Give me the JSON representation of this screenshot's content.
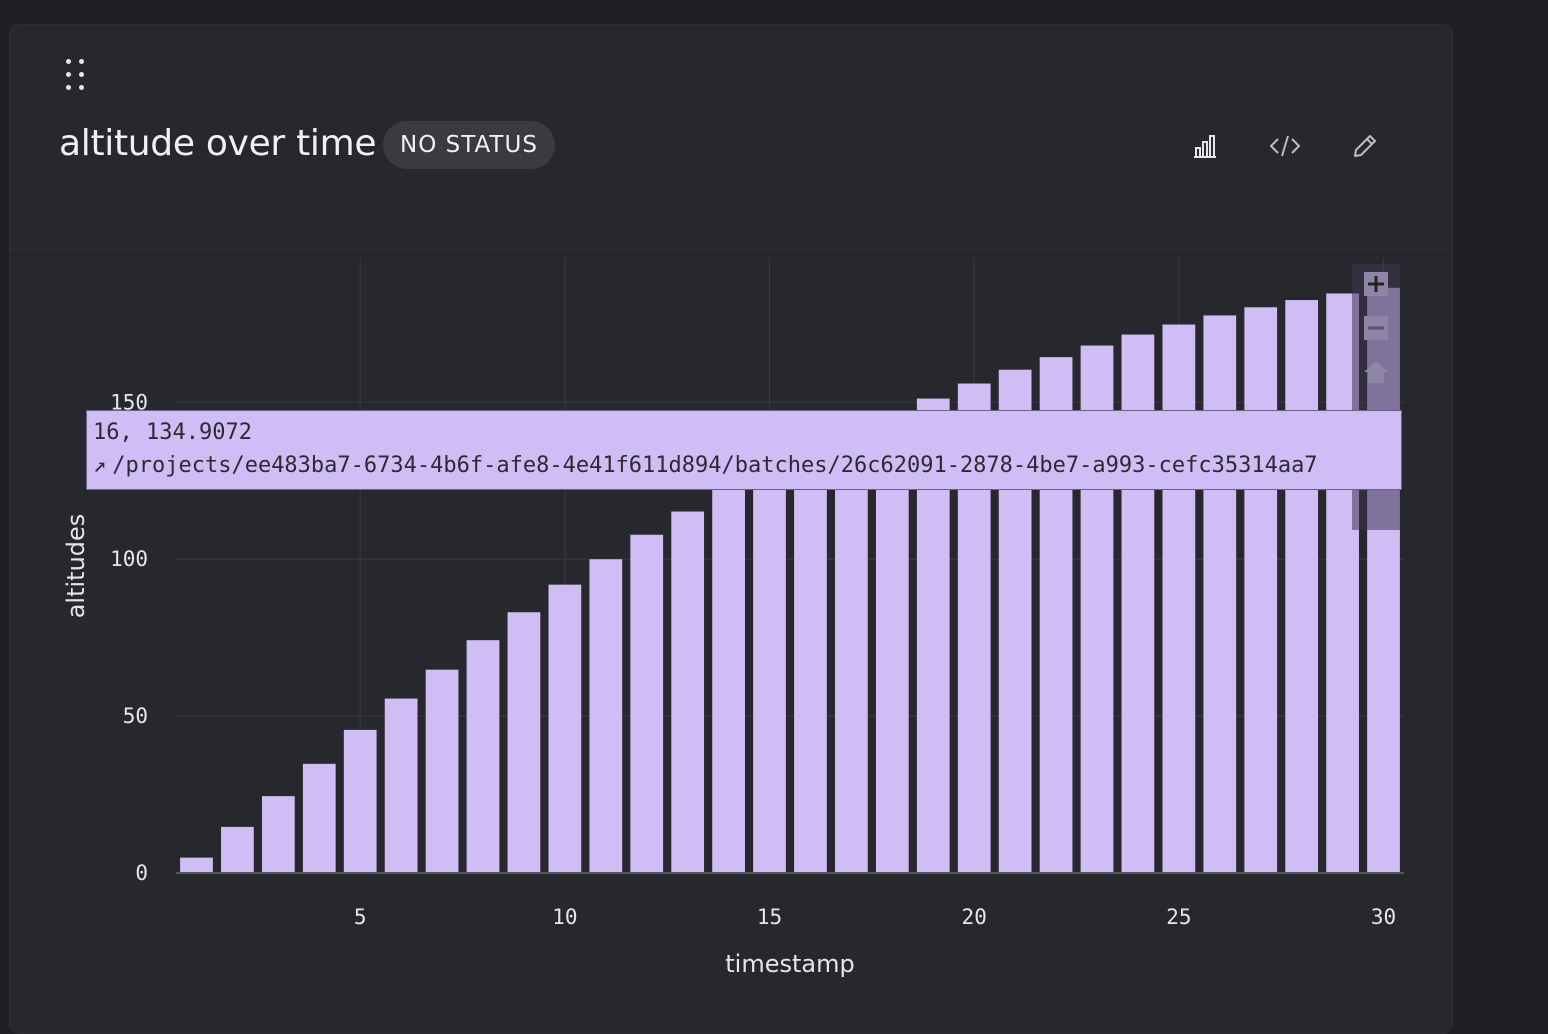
{
  "panel": {
    "title": "altitude over time",
    "status": "NO STATUS",
    "icons": [
      "drag-handle-icon",
      "bar-chart-icon",
      "code-icon",
      "pencil-icon"
    ]
  },
  "tooltip": {
    "point": "16, 134.9072",
    "arrow": "↗",
    "link": "/projects/ee483ba7-6734-4b6f-afe8-4e41f611d894/batches/26c62091-2878-4be7-a993-cefc35314aa7"
  },
  "modebar": {
    "icons": [
      "zoom-in-icon",
      "zoom-out-icon",
      "reset-home-icon"
    ]
  },
  "colors": {
    "bar": "#d1bdf6",
    "background": "#27282d",
    "grid": "#3a3b42"
  },
  "chart_data": {
    "type": "bar",
    "x": [
      1,
      2,
      3,
      4,
      5,
      6,
      7,
      8,
      9,
      10,
      11,
      12,
      13,
      14,
      15,
      16,
      17,
      18,
      19,
      20,
      21,
      22,
      23,
      24,
      25,
      26,
      27,
      28,
      29,
      30
    ],
    "values": [
      4.9,
      14.7,
      24.5,
      34.8,
      45.6,
      55.6,
      64.8,
      74.2,
      83.1,
      91.9,
      100,
      107.8,
      115.2,
      122.1,
      128.6,
      134.9,
      140.7,
      146.1,
      151.2,
      156.0,
      160.4,
      164.4,
      168.1,
      171.6,
      174.8,
      177.7,
      180.3,
      182.6,
      184.7,
      186.5
    ],
    "xlabel": "timestamp",
    "ylabel": "altitudes",
    "xticks": [
      5,
      10,
      15,
      20,
      25,
      30
    ],
    "yticks": [
      0,
      50,
      100,
      150
    ],
    "xlim": [
      0.5,
      30.5
    ],
    "ylim": [
      0,
      196
    ],
    "grid": true
  }
}
